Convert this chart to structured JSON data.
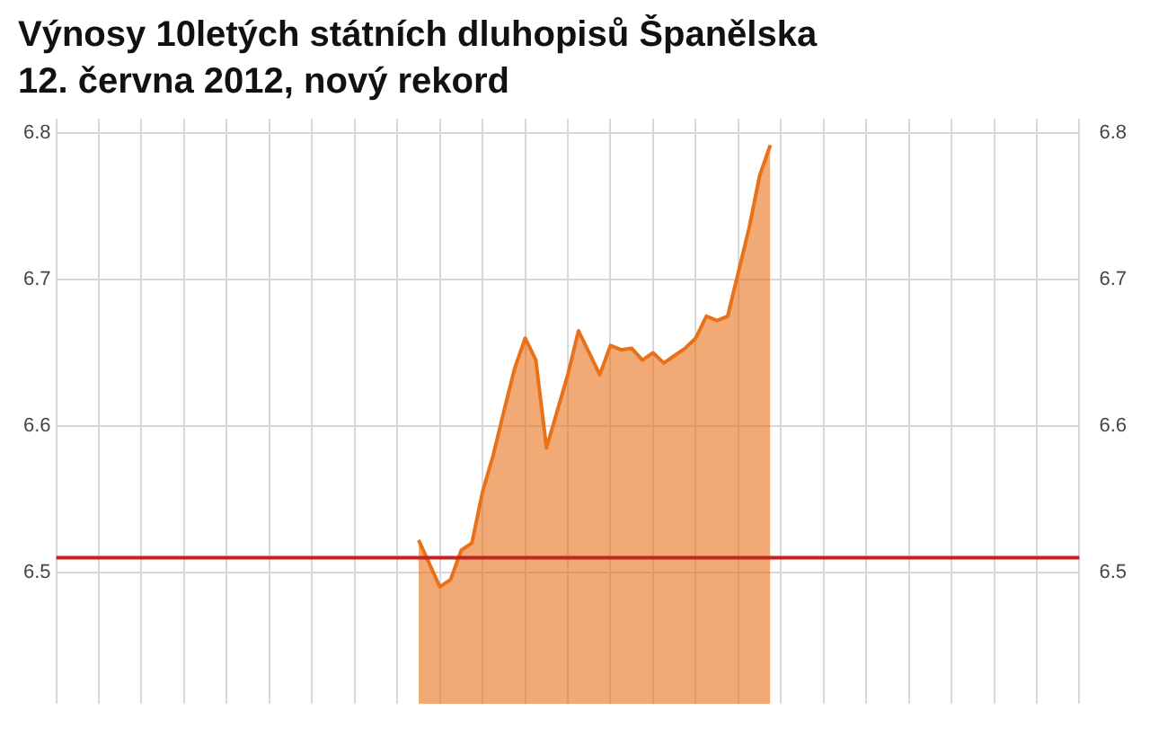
{
  "chart_data": {
    "type": "area",
    "title": "Výnosy 10letých státních dluhopisů Španělska",
    "subtitle": "12. června 2012, nový rekord",
    "categories": [
      null,
      null,
      null,
      null,
      null,
      null,
      null,
      null,
      null,
      null,
      null,
      null,
      null,
      null,
      null,
      null,
      null,
      null,
      null,
      null,
      null,
      null,
      null,
      null,
      null,
      null,
      null,
      null,
      null,
      null,
      null,
      null,
      null,
      null,
      null,
      null,
      null,
      null,
      null,
      null,
      null,
      null,
      null,
      null,
      null,
      null,
      null,
      null,
      null,
      null,
      null,
      null,
      null,
      null,
      null,
      null,
      null,
      null,
      null,
      null,
      null,
      null,
      null,
      null,
      null,
      null,
      null,
      null,
      null,
      null,
      null,
      null,
      null,
      null,
      null,
      null,
      null,
      null,
      null,
      null,
      null,
      null,
      null,
      null,
      null,
      null,
      null,
      null,
      null,
      null,
      null,
      null,
      null,
      null,
      null,
      null,
      null
    ],
    "ylim": [
      6.41,
      6.81
    ],
    "yticks": [
      6.5,
      6.6,
      6.7,
      6.8
    ],
    "y2lim": [
      6.41,
      6.81
    ],
    "y2ticks": [
      6.5,
      6.6,
      6.7,
      6.8
    ],
    "grid": true,
    "legend": false,
    "marker": "none",
    "line_style": "solid",
    "ref_lines": [
      {
        "axis": "y",
        "value": 6.51,
        "color": "#c8231e",
        "line_style": "solid"
      }
    ],
    "series": [
      {
        "color": "#e8711a",
        "values": [
          null,
          null,
          null,
          null,
          null,
          null,
          null,
          null,
          null,
          null,
          null,
          null,
          null,
          null,
          null,
          null,
          null,
          null,
          null,
          null,
          null,
          null,
          null,
          null,
          null,
          null,
          null,
          null,
          null,
          null,
          null,
          null,
          null,
          null,
          6.522,
          6.506,
          6.49,
          6.495,
          6.515,
          6.52,
          6.555,
          6.58,
          6.61,
          6.639,
          6.66,
          6.645,
          6.585,
          6.61,
          6.635,
          6.665,
          6.65,
          6.635,
          6.655,
          6.652,
          6.653,
          6.645,
          6.65,
          6.643,
          6.648,
          6.653,
          6.66,
          6.675,
          6.672,
          6.675,
          6.705,
          6.735,
          6.771,
          6.792,
          null,
          null,
          null,
          null,
          null,
          null,
          null,
          null,
          null,
          null,
          null,
          null,
          null,
          null,
          null,
          null,
          null,
          null,
          null,
          null,
          null,
          null,
          null,
          null,
          null,
          null,
          null,
          null,
          null
        ]
      }
    ]
  }
}
